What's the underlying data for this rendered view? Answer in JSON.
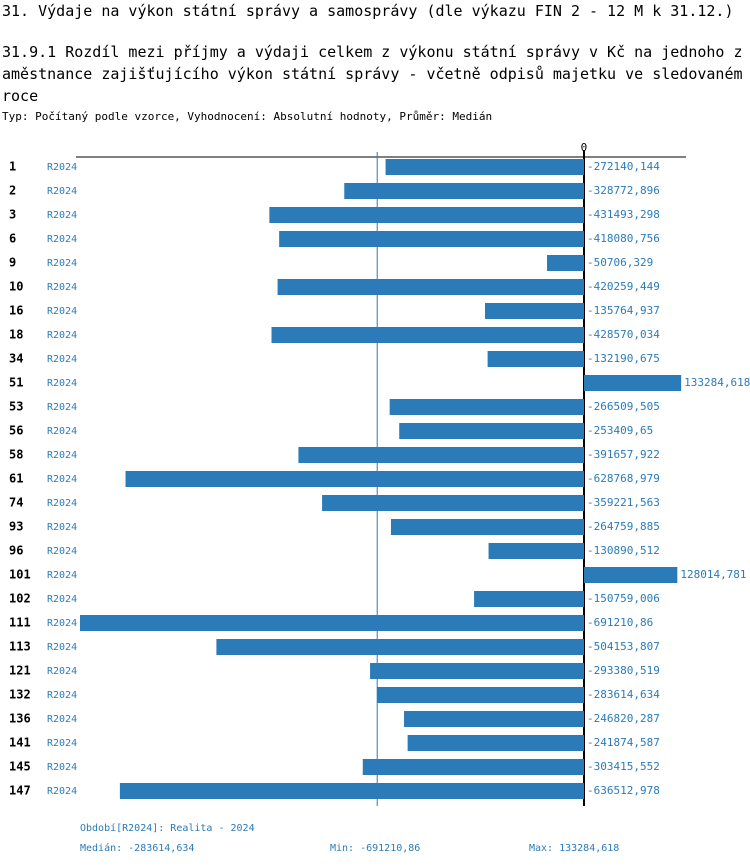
{
  "header": "31. Výdaje na výkon státní správy a samosprávy (dle výkazu FIN 2 - 12 M k 31.12.)",
  "chart_data": {
    "type": "hbar",
    "title": "31.9.1 Rozdíl mezi příjmy a výdaji celkem z výkonu státní správy v Kč na jednoho zaměstnance zajišťujícího výkon státní správy - včetně odpisů majetku ve sledovaném roce",
    "subtitle": "Typ: Počítaný podle vzorce, Vyhodnocení: Absolutní hodnoty, Průměr: Medián",
    "categories": [
      "1",
      "2",
      "3",
      "6",
      "9",
      "10",
      "16",
      "18",
      "34",
      "51",
      "53",
      "56",
      "58",
      "61",
      "74",
      "93",
      "96",
      "101",
      "102",
      "111",
      "113",
      "121",
      "132",
      "136",
      "141",
      "145",
      "147"
    ],
    "series": [
      {
        "name": "R2024",
        "color": "#2b7bb9",
        "values": [
          -272140.144,
          -328772.896,
          -431493.298,
          -418080.756,
          -50706.329,
          -420259.449,
          -135764.937,
          -428570.034,
          -132190.675,
          133284.618,
          -266509.505,
          -253409.65,
          -391657.922,
          -628768.979,
          -359221.563,
          -264759.885,
          -130890.512,
          128014.781,
          -150759.006,
          -691210.86,
          -504153.807,
          -293380.519,
          -283614.634,
          -246820.287,
          -241874.587,
          -303415.552,
          -636512.978
        ],
        "value_labels": [
          "-272140,144",
          "-328772,896",
          "-431493,298",
          "-418080,756",
          "-50706,329",
          "-420259,449",
          "-135764,937",
          "-428570,034",
          "-132190,675",
          "133284,618",
          "-266509,505",
          "-253409,65",
          "-391657,922",
          "-628768,979",
          "-359221,563",
          "-264759,885",
          "-130890,512",
          "128014,781",
          "-150759,006",
          "-691210,86",
          "-504153,807",
          "-293380,519",
          "-283614,634",
          "-246820,287",
          "-241874,587",
          "-303415,552",
          "-636512,978"
        ]
      }
    ],
    "median": -283614.634,
    "xlim": [
      -696700,
      139900
    ],
    "xticks": [
      0
    ],
    "footer": {
      "period": "Období[R2024]: Realita - 2024",
      "median": "Medián: -283614,634",
      "min": "Min: -691210,86",
      "max": "Max: 133284,618"
    }
  }
}
